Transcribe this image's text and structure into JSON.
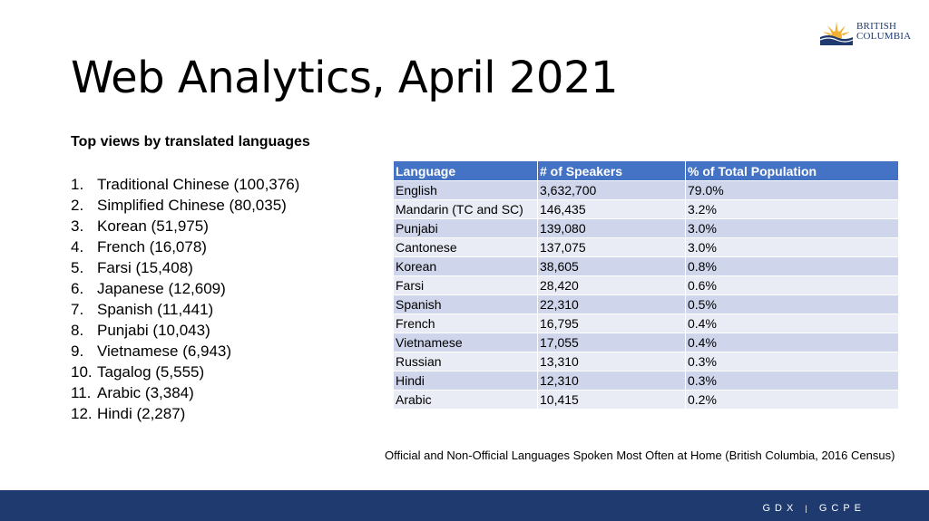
{
  "logo": {
    "line1": "BRITISH",
    "line2": "COLUMBIA"
  },
  "title": "Web Analytics, April 2021",
  "subheading": "Top views by translated languages",
  "ranked_languages": [
    {
      "num": "1.",
      "text": "Traditional Chinese (100,376)"
    },
    {
      "num": "2.",
      "text": "Simplified Chinese (80,035)"
    },
    {
      "num": "3.",
      "text": "Korean (51,975)"
    },
    {
      "num": "4.",
      "text": "French (16,078)"
    },
    {
      "num": "5.",
      "text": "Farsi (15,408)"
    },
    {
      "num": "6.",
      "text": "Japanese (12,609)"
    },
    {
      "num": "7.",
      "text": "Spanish (11,441)"
    },
    {
      "num": "8.",
      "text": "Punjabi (10,043)"
    },
    {
      "num": "9.",
      "text": "Vietnamese (6,943)"
    },
    {
      "num": "10.",
      "text": "Tagalog (5,555)"
    },
    {
      "num": "11.",
      "text": "Arabic (3,384)"
    },
    {
      "num": "12.",
      "text": "Hindi (2,287)"
    }
  ],
  "table": {
    "headers": [
      "Language",
      "# of Speakers",
      "% of Total Population"
    ],
    "rows": [
      [
        "English",
        "3,632,700",
        "79.0%"
      ],
      [
        "Mandarin (TC and SC)",
        "146,435",
        "3.2%"
      ],
      [
        "Punjabi",
        "139,080",
        "3.0%"
      ],
      [
        "Cantonese",
        "137,075",
        "3.0%"
      ],
      [
        "Korean",
        "38,605",
        "0.8%"
      ],
      [
        "Farsi",
        "28,420",
        "0.6%"
      ],
      [
        "Spanish",
        "22,310",
        "0.5%"
      ],
      [
        "French",
        "16,795",
        "0.4%"
      ],
      [
        "Vietnamese",
        "17,055",
        "0.4%"
      ],
      [
        "Russian",
        "13,310",
        "0.3%"
      ],
      [
        "Hindi",
        "12,310",
        "0.3%"
      ],
      [
        "Arabic",
        "10,415",
        "0.2%"
      ]
    ]
  },
  "source_note": "Official and Non-Official Languages Spoken Most Often at Home (British Columbia, 2016 Census)",
  "footer": {
    "left": "GDX",
    "separator": "|",
    "right": "GCPE"
  },
  "colors": {
    "header_blue": "#4472c4",
    "footer_navy": "#1e3a6e",
    "sun_gold": "#f2b135"
  }
}
